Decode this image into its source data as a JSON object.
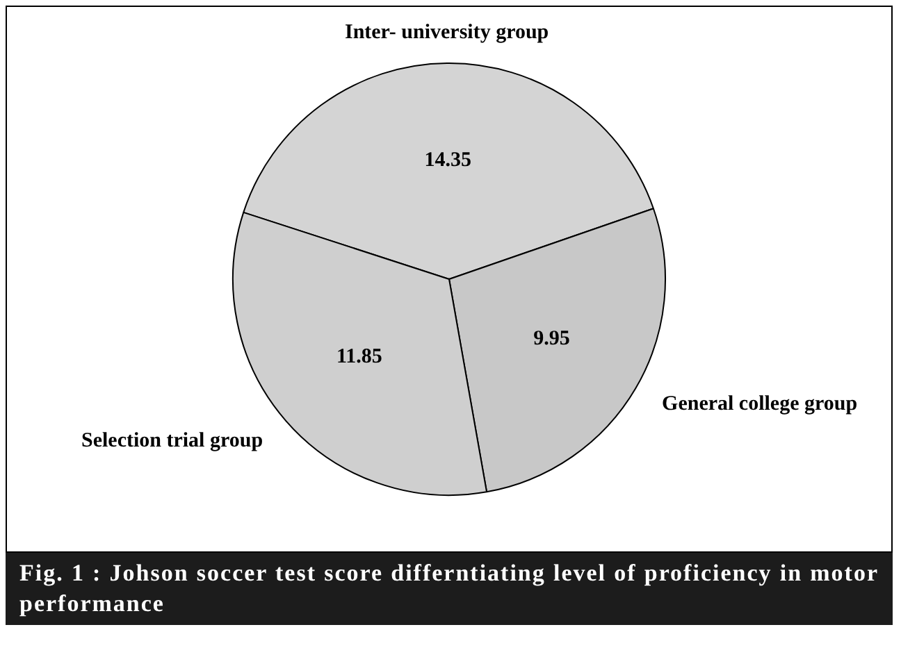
{
  "chart_data": {
    "type": "pie",
    "title": "Fig. 1 : Johson soccer test score differntiating level of proficiency in motor performance",
    "categories": [
      "Inter- university group",
      "General college group",
      "Selection trial group"
    ],
    "values": [
      14.35,
      9.95,
      11.85
    ],
    "colors": [
      "#d4d4d4",
      "#c8c8c8",
      "#cfcfcf"
    ],
    "data_labels": true,
    "legend": false
  }
}
